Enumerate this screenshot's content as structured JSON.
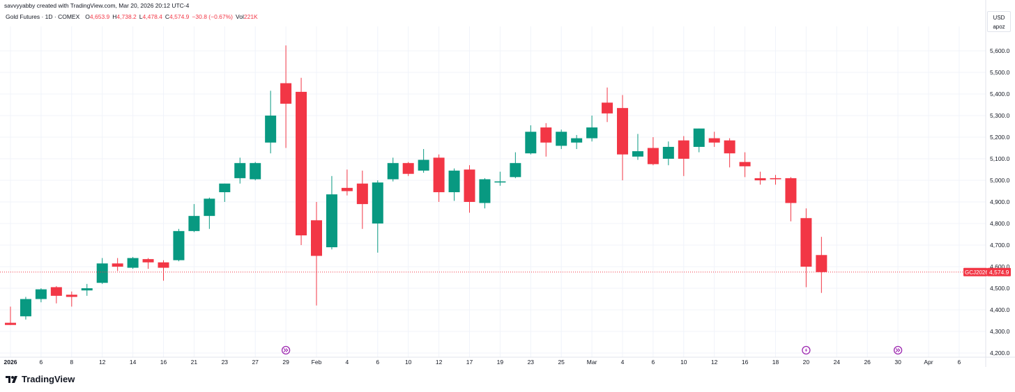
{
  "header": {
    "credit": "savvyyabby created with TradingView.com, Mar 20, 2026 20:12 UTC-4"
  },
  "legend": {
    "symbol": "Gold Futures · 1D · COMEX",
    "open_label": "O",
    "open": "4,653.9",
    "high_label": "H",
    "high": "4,738.2",
    "low_label": "L",
    "low": "4,478.4",
    "close_label": "C",
    "close": "4,574.9",
    "change": "−30.8 (−0.67%)",
    "vol_label": "Vol",
    "vol": "221K"
  },
  "currency": {
    "code": "USD",
    "sub": "apoz"
  },
  "brand": {
    "name": "TradingView"
  },
  "colors": {
    "up": "#089981",
    "down": "#f23645",
    "grid": "#f0f3fa",
    "axis_text": "#131722",
    "event": "#9c27b0"
  },
  "chart_data": {
    "type": "candlestick",
    "title": "Gold Futures · 1D · COMEX",
    "ylim": [
      4200,
      5700
    ],
    "y_ticks": [
      "4,200.0",
      "4,300.0",
      "4,400.0",
      "4,500.0",
      "4,600.0",
      "4,700.0",
      "4,800.0",
      "4,900.0",
      "5,000.0",
      "5,100.0",
      "5,200.0",
      "5,300.0",
      "5,400.0",
      "5,500.0",
      "5,600.0"
    ],
    "y_tick_values": [
      4200,
      4300,
      4400,
      4500,
      4600,
      4700,
      4800,
      4900,
      5000,
      5100,
      5200,
      5300,
      5400,
      5500,
      5600
    ],
    "x_ticks": [
      {
        "slot": 0,
        "label": "2026",
        "bold": true
      },
      {
        "slot": 2,
        "label": "6"
      },
      {
        "slot": 4,
        "label": "8"
      },
      {
        "slot": 6,
        "label": "12"
      },
      {
        "slot": 8,
        "label": "14"
      },
      {
        "slot": 10,
        "label": "16"
      },
      {
        "slot": 12,
        "label": "21"
      },
      {
        "slot": 14,
        "label": "23"
      },
      {
        "slot": 16,
        "label": "27"
      },
      {
        "slot": 18,
        "label": "29"
      },
      {
        "slot": 20,
        "label": "Feb"
      },
      {
        "slot": 22,
        "label": "4"
      },
      {
        "slot": 24,
        "label": "6"
      },
      {
        "slot": 26,
        "label": "10"
      },
      {
        "slot": 28,
        "label": "12"
      },
      {
        "slot": 30,
        "label": "17"
      },
      {
        "slot": 32,
        "label": "19"
      },
      {
        "slot": 34,
        "label": "23"
      },
      {
        "slot": 36,
        "label": "25"
      },
      {
        "slot": 38,
        "label": "Mar"
      },
      {
        "slot": 40,
        "label": "4"
      },
      {
        "slot": 42,
        "label": "6"
      },
      {
        "slot": 44,
        "label": "10"
      },
      {
        "slot": 46,
        "label": "12"
      },
      {
        "slot": 48,
        "label": "16"
      },
      {
        "slot": 50,
        "label": "18"
      },
      {
        "slot": 52,
        "label": "20"
      },
      {
        "slot": 54,
        "label": "24"
      },
      {
        "slot": 56,
        "label": "26"
      },
      {
        "slot": 58,
        "label": "30"
      },
      {
        "slot": 60,
        "label": "Apr"
      },
      {
        "slot": 62,
        "label": "6"
      }
    ],
    "candles": [
      {
        "o": 4340,
        "h": 4415,
        "l": 4330,
        "c": 4330
      },
      {
        "o": 4370,
        "h": 4460,
        "l": 4355,
        "c": 4450
      },
      {
        "o": 4450,
        "h": 4500,
        "l": 4435,
        "c": 4495
      },
      {
        "o": 4505,
        "h": 4510,
        "l": 4430,
        "c": 4465
      },
      {
        "o": 4470,
        "h": 4485,
        "l": 4415,
        "c": 4460
      },
      {
        "o": 4490,
        "h": 4520,
        "l": 4465,
        "c": 4500
      },
      {
        "o": 4525,
        "h": 4640,
        "l": 4520,
        "c": 4615
      },
      {
        "o": 4615,
        "h": 4640,
        "l": 4580,
        "c": 4600
      },
      {
        "o": 4595,
        "h": 4645,
        "l": 4590,
        "c": 4640
      },
      {
        "o": 4635,
        "h": 4640,
        "l": 4590,
        "c": 4620
      },
      {
        "o": 4620,
        "h": 4630,
        "l": 4535,
        "c": 4595
      },
      {
        "o": 4630,
        "h": 4775,
        "l": 4625,
        "c": 4765
      },
      {
        "o": 4765,
        "h": 4890,
        "l": 4760,
        "c": 4835
      },
      {
        "o": 4835,
        "h": 4920,
        "l": 4775,
        "c": 4915
      },
      {
        "o": 4945,
        "h": 4985,
        "l": 4900,
        "c": 4985
      },
      {
        "o": 5010,
        "h": 5105,
        "l": 4985,
        "c": 5080
      },
      {
        "o": 5005,
        "h": 5085,
        "l": 5000,
        "c": 5080
      },
      {
        "o": 5175,
        "h": 5415,
        "l": 5125,
        "c": 5300
      },
      {
        "o": 5450,
        "h": 5625,
        "l": 5150,
        "c": 5355
      },
      {
        "o": 5410,
        "h": 5475,
        "l": 4700,
        "c": 4745
      },
      {
        "o": 4815,
        "h": 4900,
        "l": 4420,
        "c": 4650
      },
      {
        "o": 4690,
        "h": 5020,
        "l": 4680,
        "c": 4935
      },
      {
        "o": 4965,
        "h": 5050,
        "l": 4930,
        "c": 4950
      },
      {
        "o": 4985,
        "h": 5045,
        "l": 4775,
        "c": 4890
      },
      {
        "o": 4800,
        "h": 5000,
        "l": 4665,
        "c": 4990
      },
      {
        "o": 5005,
        "h": 5105,
        "l": 4995,
        "c": 5080
      },
      {
        "o": 5080,
        "h": 5085,
        "l": 5020,
        "c": 5030
      },
      {
        "o": 5045,
        "h": 5145,
        "l": 5035,
        "c": 5095
      },
      {
        "o": 5105,
        "h": 5120,
        "l": 4900,
        "c": 4945
      },
      {
        "o": 4945,
        "h": 5055,
        "l": 4905,
        "c": 5045
      },
      {
        "o": 5050,
        "h": 5070,
        "l": 4850,
        "c": 4900
      },
      {
        "o": 4895,
        "h": 5010,
        "l": 4870,
        "c": 5005
      },
      {
        "o": 4990,
        "h": 5040,
        "l": 4975,
        "c": 4995
      },
      {
        "o": 5015,
        "h": 5130,
        "l": 5010,
        "c": 5080
      },
      {
        "o": 5125,
        "h": 5255,
        "l": 5120,
        "c": 5225
      },
      {
        "o": 5245,
        "h": 5265,
        "l": 5110,
        "c": 5175
      },
      {
        "o": 5160,
        "h": 5235,
        "l": 5145,
        "c": 5225
      },
      {
        "o": 5175,
        "h": 5210,
        "l": 5145,
        "c": 5195
      },
      {
        "o": 5195,
        "h": 5300,
        "l": 5180,
        "c": 5245
      },
      {
        "o": 5360,
        "h": 5430,
        "l": 5270,
        "c": 5310
      },
      {
        "o": 5335,
        "h": 5395,
        "l": 5000,
        "c": 5120
      },
      {
        "o": 5110,
        "h": 5215,
        "l": 5095,
        "c": 5135
      },
      {
        "o": 5150,
        "h": 5200,
        "l": 5070,
        "c": 5075
      },
      {
        "o": 5100,
        "h": 5180,
        "l": 5070,
        "c": 5155
      },
      {
        "o": 5185,
        "h": 5205,
        "l": 5020,
        "c": 5100
      },
      {
        "o": 5155,
        "h": 5240,
        "l": 5130,
        "c": 5240
      },
      {
        "o": 5195,
        "h": 5225,
        "l": 5155,
        "c": 5175
      },
      {
        "o": 5185,
        "h": 5195,
        "l": 5060,
        "c": 5125
      },
      {
        "o": 5085,
        "h": 5130,
        "l": 5015,
        "c": 5065
      },
      {
        "o": 5010,
        "h": 5040,
        "l": 4980,
        "c": 5000
      },
      {
        "o": 5010,
        "h": 5025,
        "l": 4980,
        "c": 5005
      },
      {
        "o": 5010,
        "h": 5015,
        "l": 4810,
        "c": 4895
      },
      {
        "o": 4825,
        "h": 4870,
        "l": 4505,
        "c": 4600
      },
      {
        "o": 4653.9,
        "h": 4738.2,
        "l": 4478.4,
        "c": 4574.9
      }
    ],
    "last_price": {
      "symbol": "GCJ2026",
      "value": "4,574.9",
      "price": 4574.9
    },
    "event_markers": [
      {
        "slot": 18,
        "icon": "double-chevron-icon"
      },
      {
        "slot": 52,
        "icon": "lightning-icon"
      },
      {
        "slot": 58,
        "icon": "double-chevron-icon"
      }
    ]
  }
}
